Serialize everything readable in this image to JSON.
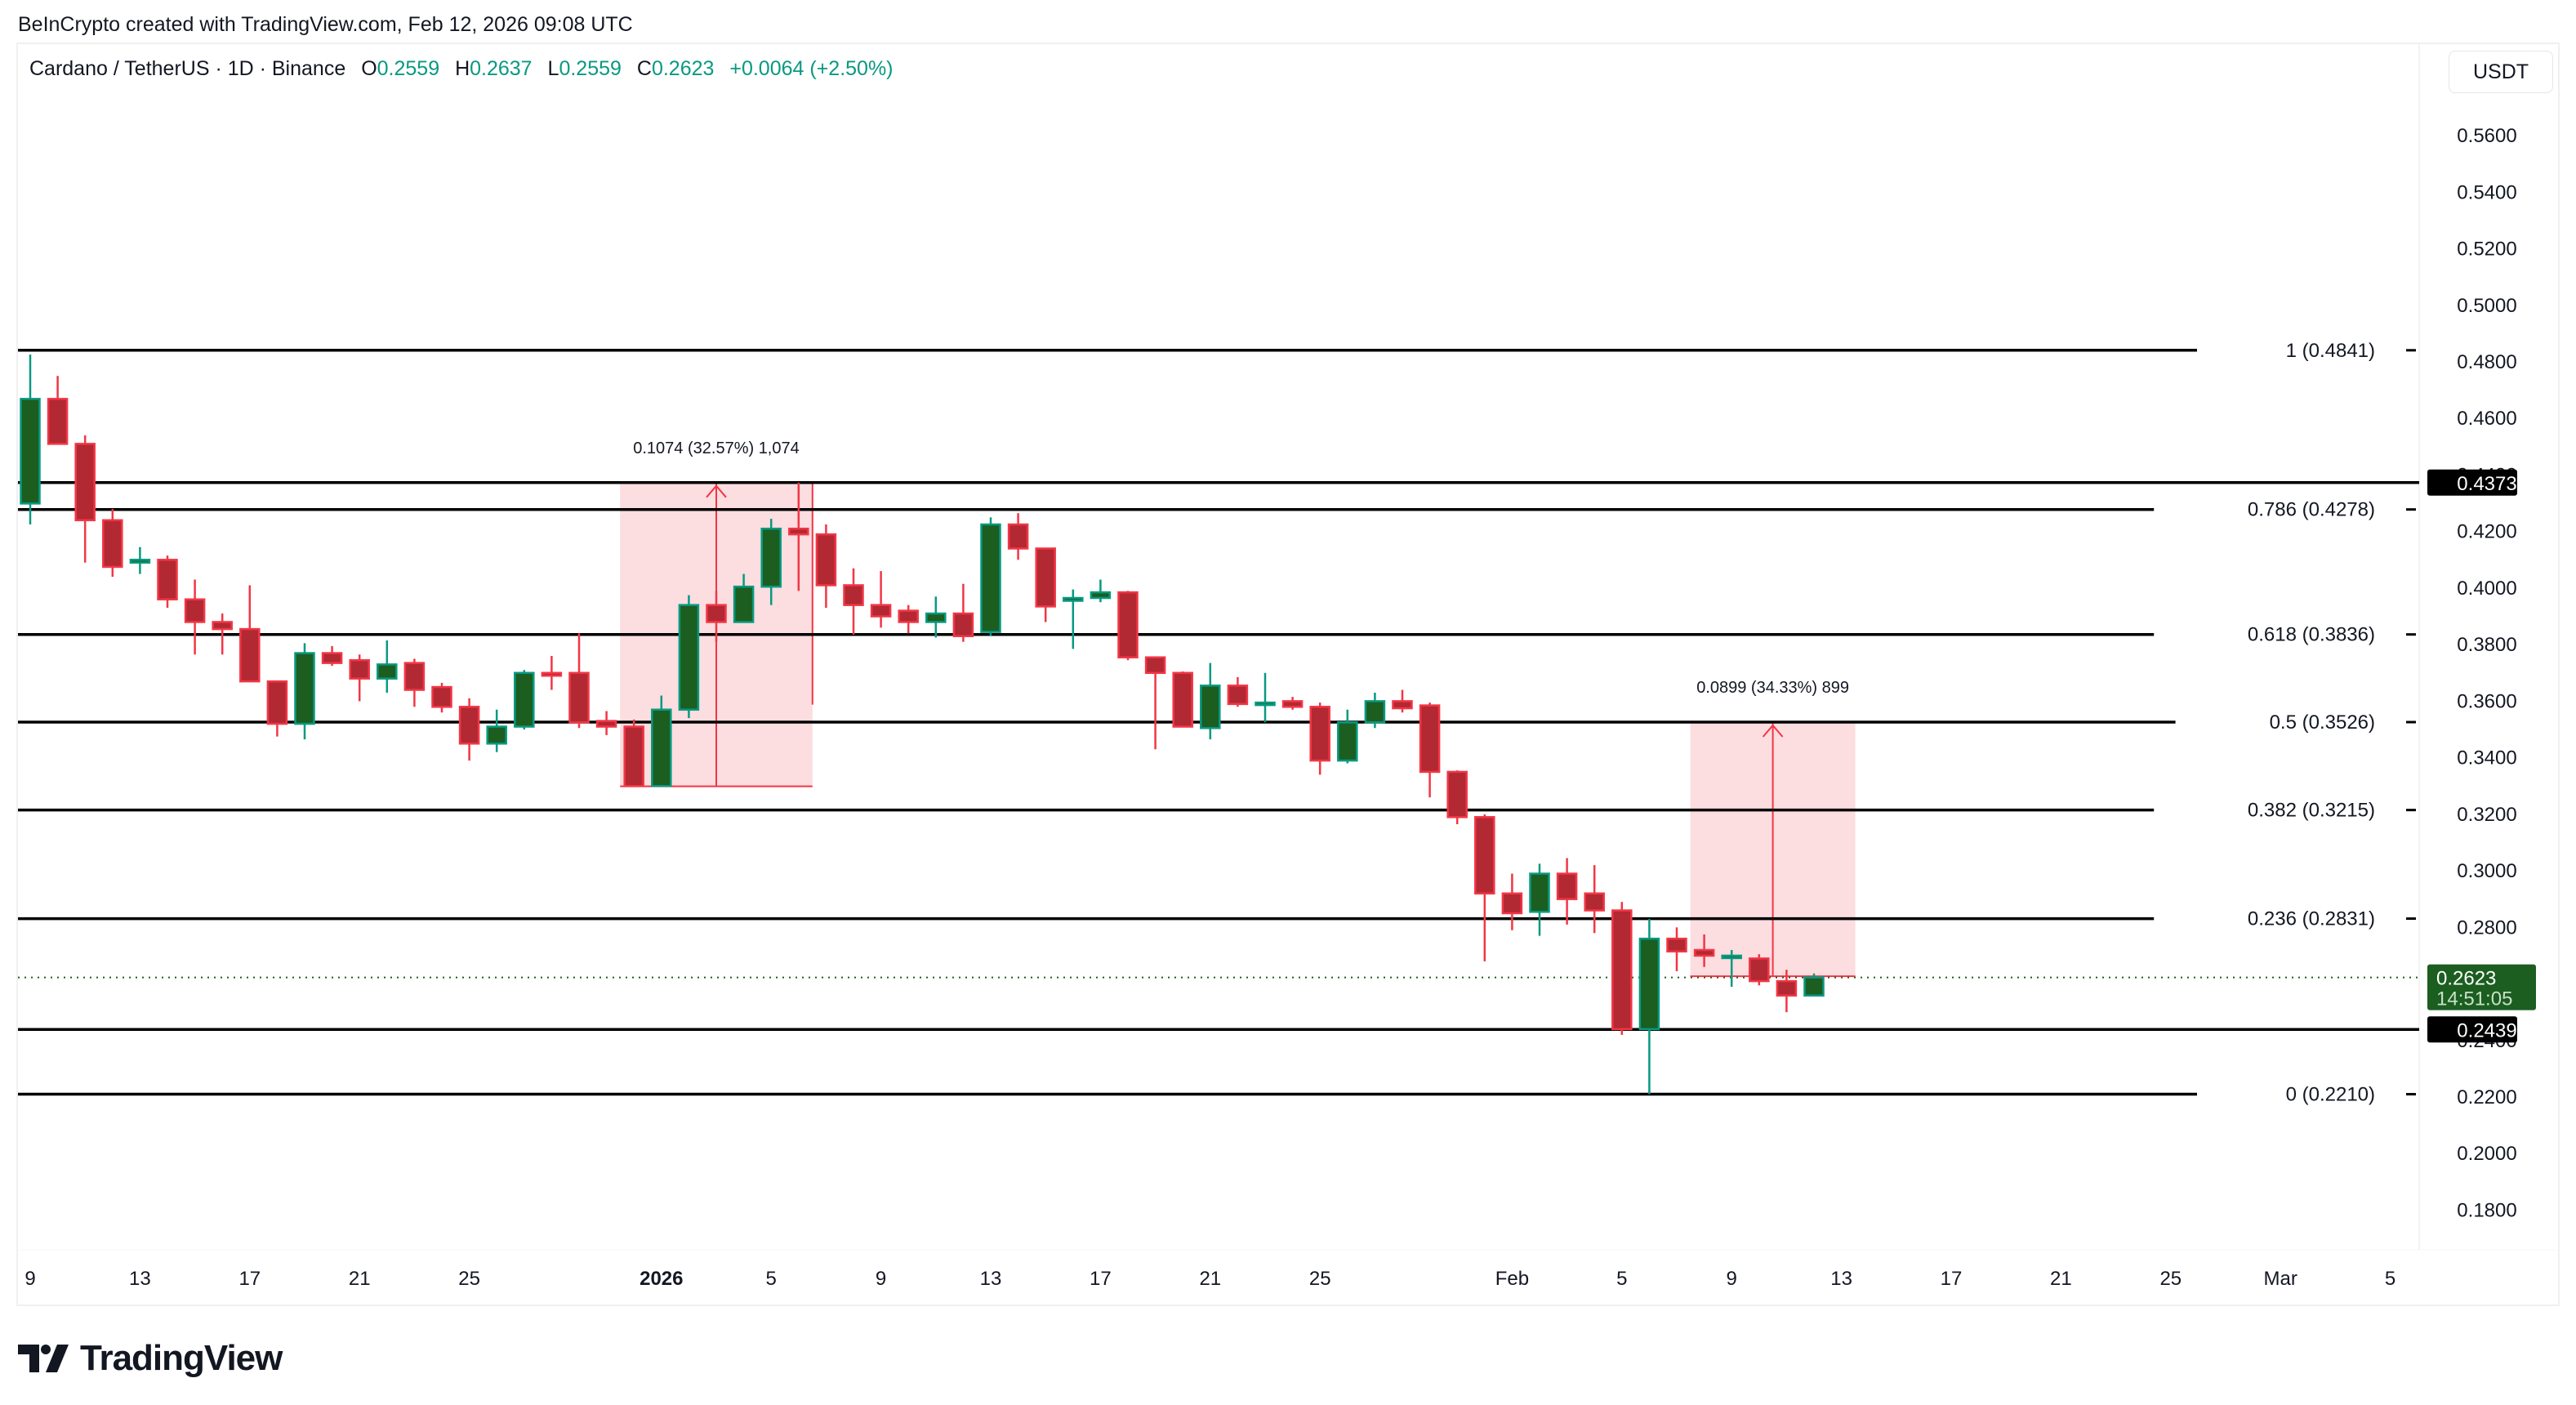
{
  "credit": "BeInCrypto created with TradingView.com, Feb 12, 2026 09:08 UTC",
  "legend": {
    "symbol": "Cardano / TetherUS · 1D · Binance",
    "open_label": "O",
    "open": "0.2559",
    "high_label": "H",
    "high": "0.2637",
    "low_label": "L",
    "low": "0.2559",
    "close_label": "C",
    "close": "0.2623",
    "change": "+0.0064 (+2.50%)"
  },
  "currency_button": "USDT",
  "logo_text": "TradingView",
  "colors": {
    "up_body": "#1b5e20",
    "up_border": "#089981",
    "down_body": "#b22833",
    "down_border": "#f23645",
    "fib_line": "#000000",
    "measure_fill": "#fcdde0",
    "measure_line": "#f23645",
    "last_price_bg": "#1b5e20",
    "horizontal_label_bg": "#000000"
  },
  "chart_data": {
    "type": "candlestick",
    "title": "Cardano / TetherUS · 1D · Binance",
    "xlabel": "",
    "ylabel": "USDT",
    "ylim": [
      0.17,
      0.58
    ],
    "grid": false,
    "y_ticks": [
      "0.5600",
      "0.5400",
      "0.5200",
      "0.5000",
      "0.4800",
      "0.4600",
      "0.4400",
      "0.4200",
      "0.4000",
      "0.3800",
      "0.3600",
      "0.3400",
      "0.3200",
      "0.3000",
      "0.2800",
      "0.2600",
      "0.2400",
      "0.2200",
      "0.2000",
      "0.1800"
    ],
    "x_ticks": [
      {
        "label": "9",
        "day": 0
      },
      {
        "label": "13",
        "day": 4
      },
      {
        "label": "17",
        "day": 8
      },
      {
        "label": "21",
        "day": 12
      },
      {
        "label": "25",
        "day": 16
      },
      {
        "label": "2026",
        "day": 23,
        "bold": true
      },
      {
        "label": "5",
        "day": 27
      },
      {
        "label": "9",
        "day": 31
      },
      {
        "label": "13",
        "day": 35
      },
      {
        "label": "17",
        "day": 39
      },
      {
        "label": "21",
        "day": 43
      },
      {
        "label": "25",
        "day": 47
      },
      {
        "label": "Feb",
        "day": 54
      },
      {
        "label": "5",
        "day": 58
      },
      {
        "label": "9",
        "day": 62
      },
      {
        "label": "13",
        "day": 66
      },
      {
        "label": "17",
        "day": 70
      },
      {
        "label": "21",
        "day": 74
      },
      {
        "label": "25",
        "day": 78
      },
      {
        "label": "Mar",
        "day": 82
      },
      {
        "label": "5",
        "day": 86
      }
    ],
    "candles": [
      {
        "d": "Dec 9",
        "o": 0.4299,
        "h": 0.4826,
        "l": 0.4225,
        "c": 0.4669
      },
      {
        "d": "Dec 10",
        "o": 0.4669,
        "h": 0.475,
        "l": 0.452,
        "c": 0.451
      },
      {
        "d": "Dec 11",
        "o": 0.451,
        "h": 0.454,
        "l": 0.409,
        "c": 0.424
      },
      {
        "d": "Dec 12",
        "o": 0.424,
        "h": 0.428,
        "l": 0.404,
        "c": 0.4075
      },
      {
        "d": "Dec 13",
        "o": 0.409,
        "h": 0.4145,
        "l": 0.405,
        "c": 0.41
      },
      {
        "d": "Dec 14",
        "o": 0.41,
        "h": 0.4115,
        "l": 0.393,
        "c": 0.396
      },
      {
        "d": "Dec 15",
        "o": 0.396,
        "h": 0.403,
        "l": 0.3765,
        "c": 0.388
      },
      {
        "d": "Dec 16",
        "o": 0.388,
        "h": 0.391,
        "l": 0.3765,
        "c": 0.3855
      },
      {
        "d": "Dec 17",
        "o": 0.3855,
        "h": 0.401,
        "l": 0.3715,
        "c": 0.367
      },
      {
        "d": "Dec 18",
        "o": 0.367,
        "h": 0.356,
        "l": 0.3475,
        "c": 0.352
      },
      {
        "d": "Dec 19",
        "o": 0.352,
        "h": 0.3805,
        "l": 0.3465,
        "c": 0.377
      },
      {
        "d": "Dec 20",
        "o": 0.377,
        "h": 0.3795,
        "l": 0.3725,
        "c": 0.3735
      },
      {
        "d": "Dec 21",
        "o": 0.3745,
        "h": 0.3765,
        "l": 0.36,
        "c": 0.368
      },
      {
        "d": "Dec 22",
        "o": 0.368,
        "h": 0.3815,
        "l": 0.363,
        "c": 0.373
      },
      {
        "d": "Dec 23",
        "o": 0.3735,
        "h": 0.375,
        "l": 0.358,
        "c": 0.364
      },
      {
        "d": "Dec 24",
        "o": 0.365,
        "h": 0.3665,
        "l": 0.356,
        "c": 0.358
      },
      {
        "d": "Dec 25",
        "o": 0.358,
        "h": 0.361,
        "l": 0.339,
        "c": 0.345
      },
      {
        "d": "Dec 26",
        "o": 0.345,
        "h": 0.357,
        "l": 0.342,
        "c": 0.351
      },
      {
        "d": "Dec 27",
        "o": 0.351,
        "h": 0.371,
        "l": 0.35,
        "c": 0.37
      },
      {
        "d": "Dec 28",
        "o": 0.37,
        "h": 0.376,
        "l": 0.364,
        "c": 0.369
      },
      {
        "d": "Dec 29",
        "o": 0.37,
        "h": 0.384,
        "l": 0.3505,
        "c": 0.3525
      },
      {
        "d": "Dec 30",
        "o": 0.353,
        "h": 0.3565,
        "l": 0.348,
        "c": 0.351
      },
      {
        "d": "Dec 31",
        "o": 0.351,
        "h": 0.3535,
        "l": 0.331,
        "c": 0.33
      },
      {
        "d": "Jan 1",
        "o": 0.33,
        "h": 0.362,
        "l": 0.331,
        "c": 0.357
      },
      {
        "d": "Jan 2",
        "o": 0.357,
        "h": 0.3975,
        "l": 0.354,
        "c": 0.394
      },
      {
        "d": "Jan 3",
        "o": 0.394,
        "h": 0.399,
        "l": 0.381,
        "c": 0.388
      },
      {
        "d": "Jan 4",
        "o": 0.388,
        "h": 0.405,
        "l": 0.388,
        "c": 0.4005
      },
      {
        "d": "Jan 5",
        "o": 0.4005,
        "h": 0.4245,
        "l": 0.394,
        "c": 0.421
      },
      {
        "d": "Jan 6",
        "o": 0.421,
        "h": 0.4373,
        "l": 0.399,
        "c": 0.419
      },
      {
        "d": "Jan 7",
        "o": 0.419,
        "h": 0.4225,
        "l": 0.393,
        "c": 0.401
      },
      {
        "d": "Jan 8",
        "o": 0.401,
        "h": 0.407,
        "l": 0.3835,
        "c": 0.394
      },
      {
        "d": "Jan 9",
        "o": 0.394,
        "h": 0.406,
        "l": 0.386,
        "c": 0.39
      },
      {
        "d": "Jan 10",
        "o": 0.392,
        "h": 0.394,
        "l": 0.384,
        "c": 0.388
      },
      {
        "d": "Jan 11",
        "o": 0.388,
        "h": 0.397,
        "l": 0.3825,
        "c": 0.391
      },
      {
        "d": "Jan 12",
        "o": 0.391,
        "h": 0.4015,
        "l": 0.381,
        "c": 0.383
      },
      {
        "d": "Jan 13",
        "o": 0.3845,
        "h": 0.425,
        "l": 0.383,
        "c": 0.4225
      },
      {
        "d": "Jan 14",
        "o": 0.4225,
        "h": 0.4265,
        "l": 0.41,
        "c": 0.414
      },
      {
        "d": "Jan 15",
        "o": 0.414,
        "h": 0.414,
        "l": 0.388,
        "c": 0.3935
      },
      {
        "d": "Jan 16",
        "o": 0.3955,
        "h": 0.3995,
        "l": 0.3785,
        "c": 0.3965
      },
      {
        "d": "Jan 17",
        "o": 0.3965,
        "h": 0.403,
        "l": 0.395,
        "c": 0.3985
      },
      {
        "d": "Jan 18",
        "o": 0.3985,
        "h": 0.399,
        "l": 0.3745,
        "c": 0.3755
      },
      {
        "d": "Jan 19",
        "o": 0.3755,
        "h": 0.3755,
        "l": 0.343,
        "c": 0.37
      },
      {
        "d": "Jan 20",
        "o": 0.37,
        "h": 0.3705,
        "l": 0.351,
        "c": 0.351
      },
      {
        "d": "Jan 21",
        "o": 0.3505,
        "h": 0.3735,
        "l": 0.3465,
        "c": 0.3655
      },
      {
        "d": "Jan 22",
        "o": 0.3655,
        "h": 0.3685,
        "l": 0.358,
        "c": 0.359
      },
      {
        "d": "Jan 23",
        "o": 0.3595,
        "h": 0.37,
        "l": 0.3525,
        "c": 0.3595
      },
      {
        "d": "Jan 24",
        "o": 0.36,
        "h": 0.3615,
        "l": 0.357,
        "c": 0.358
      },
      {
        "d": "Jan 25",
        "o": 0.358,
        "h": 0.3595,
        "l": 0.334,
        "c": 0.339
      },
      {
        "d": "Jan 26",
        "o": 0.339,
        "h": 0.357,
        "l": 0.338,
        "c": 0.3525
      },
      {
        "d": "Jan 27",
        "o": 0.3525,
        "h": 0.363,
        "l": 0.3505,
        "c": 0.36
      },
      {
        "d": "Jan 28",
        "o": 0.36,
        "h": 0.364,
        "l": 0.356,
        "c": 0.3575
      },
      {
        "d": "Jan 29",
        "o": 0.3585,
        "h": 0.3595,
        "l": 0.326,
        "c": 0.335
      },
      {
        "d": "Jan 30",
        "o": 0.335,
        "h": 0.3355,
        "l": 0.3165,
        "c": 0.319
      },
      {
        "d": "Jan 31",
        "o": 0.319,
        "h": 0.32,
        "l": 0.268,
        "c": 0.292
      },
      {
        "d": "Feb 1",
        "o": 0.292,
        "h": 0.299,
        "l": 0.279,
        "c": 0.285
      },
      {
        "d": "Feb 2",
        "o": 0.2855,
        "h": 0.3025,
        "l": 0.277,
        "c": 0.299
      },
      {
        "d": "Feb 3",
        "o": 0.299,
        "h": 0.3045,
        "l": 0.281,
        "c": 0.29
      },
      {
        "d": "Feb 4",
        "o": 0.292,
        "h": 0.302,
        "l": 0.278,
        "c": 0.286
      },
      {
        "d": "Feb 5",
        "o": 0.286,
        "h": 0.289,
        "l": 0.242,
        "c": 0.244
      },
      {
        "d": "Feb 6",
        "o": 0.244,
        "h": 0.283,
        "l": 0.221,
        "c": 0.276
      },
      {
        "d": "Feb 7",
        "o": 0.276,
        "h": 0.28,
        "l": 0.2645,
        "c": 0.2715
      },
      {
        "d": "Feb 8",
        "o": 0.272,
        "h": 0.2775,
        "l": 0.266,
        "c": 0.27
      },
      {
        "d": "Feb 9",
        "o": 0.27,
        "h": 0.272,
        "l": 0.259,
        "c": 0.27
      },
      {
        "d": "Feb 10",
        "o": 0.269,
        "h": 0.2705,
        "l": 0.2595,
        "c": 0.261
      },
      {
        "d": "Feb 11",
        "o": 0.261,
        "h": 0.265,
        "l": 0.25,
        "c": 0.2559
      },
      {
        "d": "Feb 12",
        "o": 0.2559,
        "h": 0.2637,
        "l": 0.2559,
        "c": 0.2623
      }
    ],
    "fib_levels": [
      {
        "ratio": "1",
        "price": 0.4841,
        "label": "1 (0.4841)"
      },
      {
        "ratio": "0.786",
        "price": 0.4278,
        "label": "0.786 (0.4278)"
      },
      {
        "ratio": "0.618",
        "price": 0.3836,
        "label": "0.618 (0.3836)"
      },
      {
        "ratio": "0.5",
        "price": 0.3526,
        "label": "0.5 (0.3526)"
      },
      {
        "ratio": "0.382",
        "price": 0.3215,
        "label": "0.382 (0.3215)"
      },
      {
        "ratio": "0.236",
        "price": 0.2831,
        "label": "0.236 (0.2831)"
      },
      {
        "ratio": "0",
        "price": 0.221,
        "label": "0 (0.2210)"
      }
    ],
    "horizontal_lines": [
      {
        "price": 0.4373,
        "label": "0.4373"
      },
      {
        "price": 0.2439,
        "label": "0.2439"
      }
    ],
    "last_price": {
      "price": 0.2623,
      "label": "0.2623",
      "countdown": "14:51:05"
    },
    "measurements": [
      {
        "from_day": 22,
        "to_day": 28,
        "from_price": 0.3299,
        "to_price": 0.4373,
        "label": "0.1074 (32.57%) 1,074"
      },
      {
        "from_day": 61,
        "to_day": 66,
        "from_price": 0.2627,
        "to_price": 0.3526,
        "label": "0.0899 (34.33%) 899"
      }
    ]
  }
}
